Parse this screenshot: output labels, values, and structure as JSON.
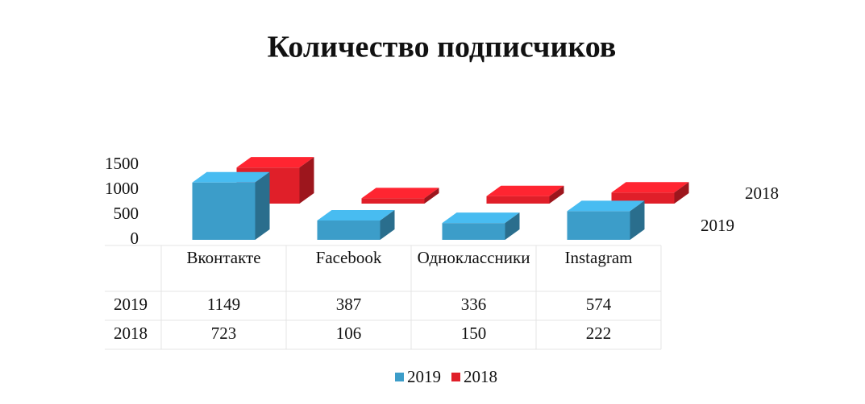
{
  "chart_data": {
    "type": "bar3d",
    "title": "Количество подписчиков",
    "categories": [
      "Вконтакте",
      "Facebook",
      "Одноклассники",
      "Instagram"
    ],
    "series": [
      {
        "name": "2019",
        "color": "#3c9dc9",
        "values": [
          1149,
          387,
          336,
          574
        ]
      },
      {
        "name": "2018",
        "color": "#e01f29",
        "values": [
          723,
          106,
          150,
          222
        ]
      }
    ],
    "ylim": [
      0,
      1500
    ],
    "yticks": [
      0,
      500,
      1000,
      1500
    ],
    "data_table": true,
    "legend": "bottom"
  }
}
